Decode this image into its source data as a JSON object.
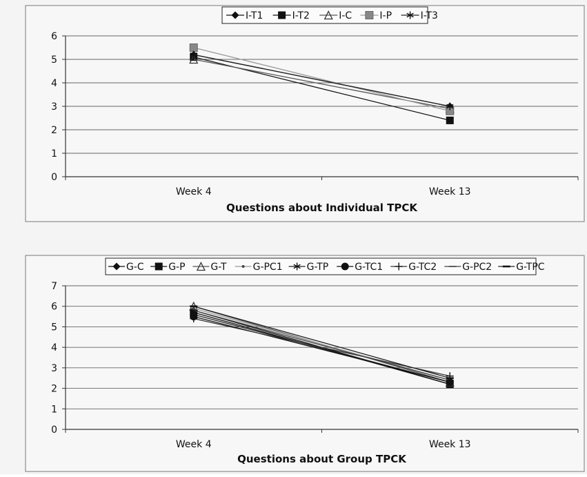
{
  "chart_data": [
    {
      "type": "line",
      "title": "",
      "xlabel": "Questions about Individual TPCK",
      "ylabel": "",
      "categories": [
        "Week 4",
        "Week 13"
      ],
      "ylim": [
        0,
        6
      ],
      "yticks": [
        0,
        1,
        2,
        3,
        4,
        5,
        6
      ],
      "grid": true,
      "legend": "top",
      "series": [
        {
          "name": "I-T1",
          "values": [
            5.2,
            3.0
          ],
          "marker": "diamond"
        },
        {
          "name": "I-T2",
          "values": [
            5.1,
            2.4
          ],
          "marker": "square"
        },
        {
          "name": "I-C",
          "values": [
            5.0,
            2.9
          ],
          "marker": "triangle"
        },
        {
          "name": "I-P",
          "values": [
            5.5,
            2.8
          ],
          "marker": "square-gray"
        },
        {
          "name": "I-T3",
          "values": [
            5.2,
            3.0
          ],
          "marker": "asterisk"
        }
      ]
    },
    {
      "type": "line",
      "title": "",
      "xlabel": "Questions about Group TPCK",
      "ylabel": "",
      "categories": [
        "Week 4",
        "Week 13"
      ],
      "ylim": [
        0,
        7
      ],
      "yticks": [
        0,
        1,
        2,
        3,
        4,
        5,
        6,
        7
      ],
      "grid": true,
      "legend": "top",
      "series": [
        {
          "name": "G-C",
          "values": [
            5.8,
            2.2
          ],
          "marker": "diamond"
        },
        {
          "name": "G-P",
          "values": [
            5.7,
            2.2
          ],
          "marker": "square"
        },
        {
          "name": "G-T",
          "values": [
            6.0,
            2.3
          ],
          "marker": "triangle"
        },
        {
          "name": "G-PC1",
          "values": [
            5.9,
            2.4
          ],
          "marker": "dot"
        },
        {
          "name": "G-TP",
          "values": [
            5.6,
            2.3
          ],
          "marker": "asterisk"
        },
        {
          "name": "G-TC1",
          "values": [
            5.5,
            2.3
          ],
          "marker": "circle"
        },
        {
          "name": "G-TC2",
          "values": [
            5.4,
            2.6
          ],
          "marker": "plus"
        },
        {
          "name": "G-PC2",
          "values": [
            5.8,
            2.4
          ],
          "marker": "dash"
        },
        {
          "name": "G-TPC",
          "values": [
            6.0,
            2.5
          ],
          "marker": "bar"
        }
      ]
    }
  ]
}
